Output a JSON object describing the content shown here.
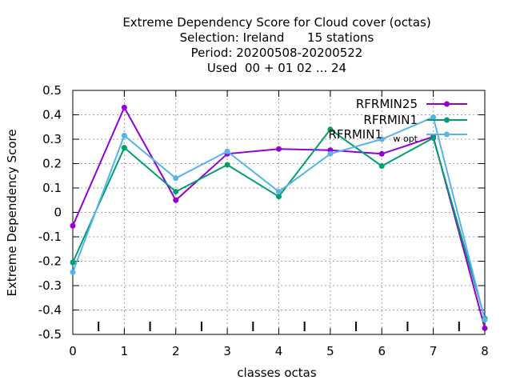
{
  "chart_data": {
    "type": "line",
    "title_lines": [
      "Extreme Dependency Score  for Cloud cover (octas)",
      "Selection: Ireland      15 stations",
      "Period: 20200508-20200522",
      "Used  00 + 01 02 ... 24"
    ],
    "xlabel": "classes octas",
    "ylabel": "Extreme Dependency Score",
    "xlim": [
      0,
      8
    ],
    "ylim": [
      -0.5,
      0.5
    ],
    "x_ticks": [
      0,
      1,
      2,
      3,
      4,
      5,
      6,
      7,
      8
    ],
    "x_tick_labels": [
      "0",
      "1",
      "2",
      "3",
      "4",
      "5",
      "6",
      "7",
      "8"
    ],
    "y_ticks": [
      -0.5,
      -0.4,
      -0.3,
      -0.2,
      -0.1,
      0,
      0.1,
      0.2,
      0.3,
      0.4,
      0.5
    ],
    "y_tick_labels": [
      "-0.5",
      "-0.4",
      "-0.3",
      "-0.2",
      "-0.1",
      "0",
      "0.1",
      "0.2",
      "0.3",
      "0.4",
      "0.5"
    ],
    "grid": true,
    "legend_position": "top-right",
    "x": [
      0,
      1,
      2,
      3,
      4,
      5,
      6,
      7,
      8
    ],
    "series": [
      {
        "name": "RFRMIN25",
        "color": "#9400d3",
        "values": [
          -0.055,
          0.43,
          0.05,
          0.24,
          0.26,
          0.255,
          0.24,
          0.31,
          -0.475
        ]
      },
      {
        "name": "RFRMIN1",
        "color": "#009e73",
        "values": [
          -0.205,
          0.265,
          0.085,
          0.195,
          0.065,
          0.34,
          0.19,
          0.305,
          -0.435
        ]
      },
      {
        "name": "RFRMIN1",
        "name_subscript": "w opt",
        "color": "#56b4e9",
        "values": [
          -0.245,
          0.315,
          0.14,
          0.25,
          0.085,
          0.24,
          0.3,
          0.39,
          -0.44
        ]
      }
    ]
  }
}
